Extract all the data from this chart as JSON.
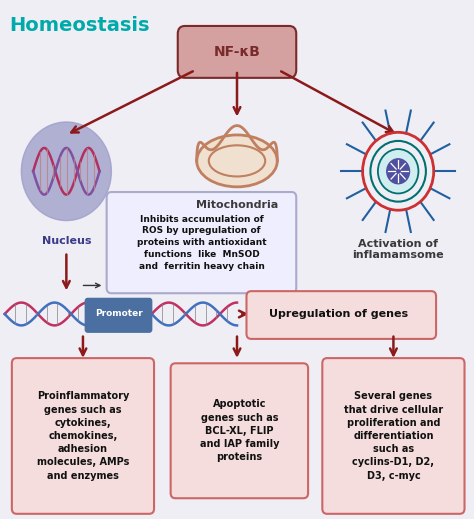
{
  "background_color": "#f0eef5",
  "title": "Homeostasis",
  "title_color": "#00aaaa",
  "title_fontsize": 14,
  "nfkb_label": "NF-κB",
  "nfkb_box_color": "#d4a0a0",
  "nfkb_text_color": "#7a2a2a",
  "arrow_color": "#8b1a1a",
  "nucleus_label": "Nucleus",
  "mito_label": "Mitochondria",
  "inflammasome_label": "Activation of\ninflamamsome",
  "mito_box_text": "Inhibits accumulation of\nROS by upregulation of\nproteins with antioxidant\nfunctions  like  MnSOD\nand  ferritin heavy chain",
  "promoter_text": "Upregulation of genes",
  "box1_text": "Proinflammatory\ngenes such as\ncytokines,\nchemokines,\nadhesion\nmolecules, AMPs\nand enzymes",
  "box2_text": "Apoptotic\ngenes such as\nBCL-XL, FLIP\nand IAP family\nproteins",
  "box3_text": "Several genes\nthat drive cellular\nproliferation and\ndifferentiation\nsuch as\ncyclins-D1, D2,\nD3, c-myc",
  "box_border_color": "#cc6666",
  "box_fill_color": "#f5dddd",
  "nucleus_circle_color": "#9b9bc8",
  "promoter_box_color": "#4a6fa0",
  "mito_box_border": "#aaaacc",
  "mito_box_fill": "#eeeeff"
}
